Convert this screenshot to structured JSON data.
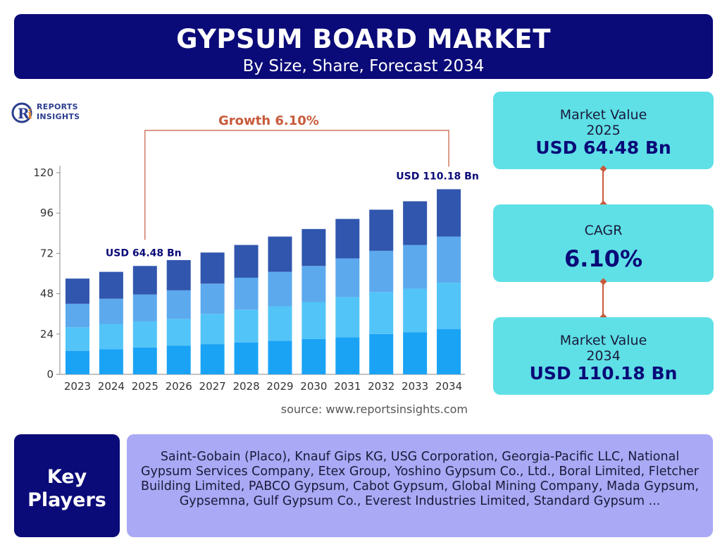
{
  "header": {
    "title": "GYPSUM BOARD MARKET",
    "subtitle": "By Size, Share, Forecast 2034"
  },
  "logo": {
    "line1": "REPORTS",
    "line2": "INSIGHTS",
    "mark": "Ri"
  },
  "chart_data": {
    "type": "bar",
    "stacked": true,
    "categories": [
      "2023",
      "2024",
      "2025",
      "2026",
      "2027",
      "2028",
      "2029",
      "2030",
      "2031",
      "2032",
      "2033",
      "2034"
    ],
    "series": [
      {
        "values": [
          14,
          15,
          16,
          17,
          18,
          19,
          20,
          21,
          22,
          24,
          25,
          27
        ],
        "color": "#1aa3f5"
      },
      {
        "values": [
          14,
          15,
          15.5,
          16,
          18,
          19.5,
          20.5,
          22,
          24,
          25,
          26,
          27.5
        ],
        "color": "#52c4f7"
      },
      {
        "values": [
          14,
          15,
          16,
          17,
          18,
          19,
          20.5,
          21.5,
          23,
          24.5,
          26,
          27.5
        ],
        "color": "#5ca9ee"
      },
      {
        "values": [
          15,
          16,
          17,
          18,
          18.5,
          19.5,
          21,
          22,
          23.5,
          24.5,
          26,
          28.18
        ],
        "color": "#3156ae"
      }
    ],
    "ylim": [
      0,
      120
    ],
    "yticks": [
      0,
      24,
      48,
      72,
      96,
      120
    ],
    "grid": false,
    "annotations": {
      "start_label": "USD 64.48 Bn",
      "end_label": "USD 110.18 Bn",
      "growth_label": "Growth 6.10%",
      "start_index": 2,
      "end_index": 11
    }
  },
  "source": "source: www.reportsinsights.com",
  "cards": [
    {
      "label": "Market Value",
      "sub": "2025",
      "value": "USD 64.48 Bn"
    },
    {
      "label": "CAGR",
      "value": "6.10%"
    },
    {
      "label": "Market Value",
      "sub": "2034",
      "value": "USD 110.18 Bn"
    }
  ],
  "colors": {
    "navy": "#0a0a78",
    "card": "#5ee0e6",
    "accent": "#c85a3c",
    "players_bg": "#a9a9f5"
  },
  "key_players": {
    "title": "Key Players",
    "text": "Saint-Gobain (Placo), Knauf Gips KG, USG Corporation, Georgia-Pacific LLC, National Gypsum Services Company, Etex Group, Yoshino Gypsum Co., Ltd., Boral Limited, Fletcher Building Limited, PABCO Gypsum, Cabot Gypsum, Global Mining Company, Mada Gypsum, Gypsemna, Gulf Gypsum Co., Everest Industries Limited, Standard Gypsum ..."
  }
}
